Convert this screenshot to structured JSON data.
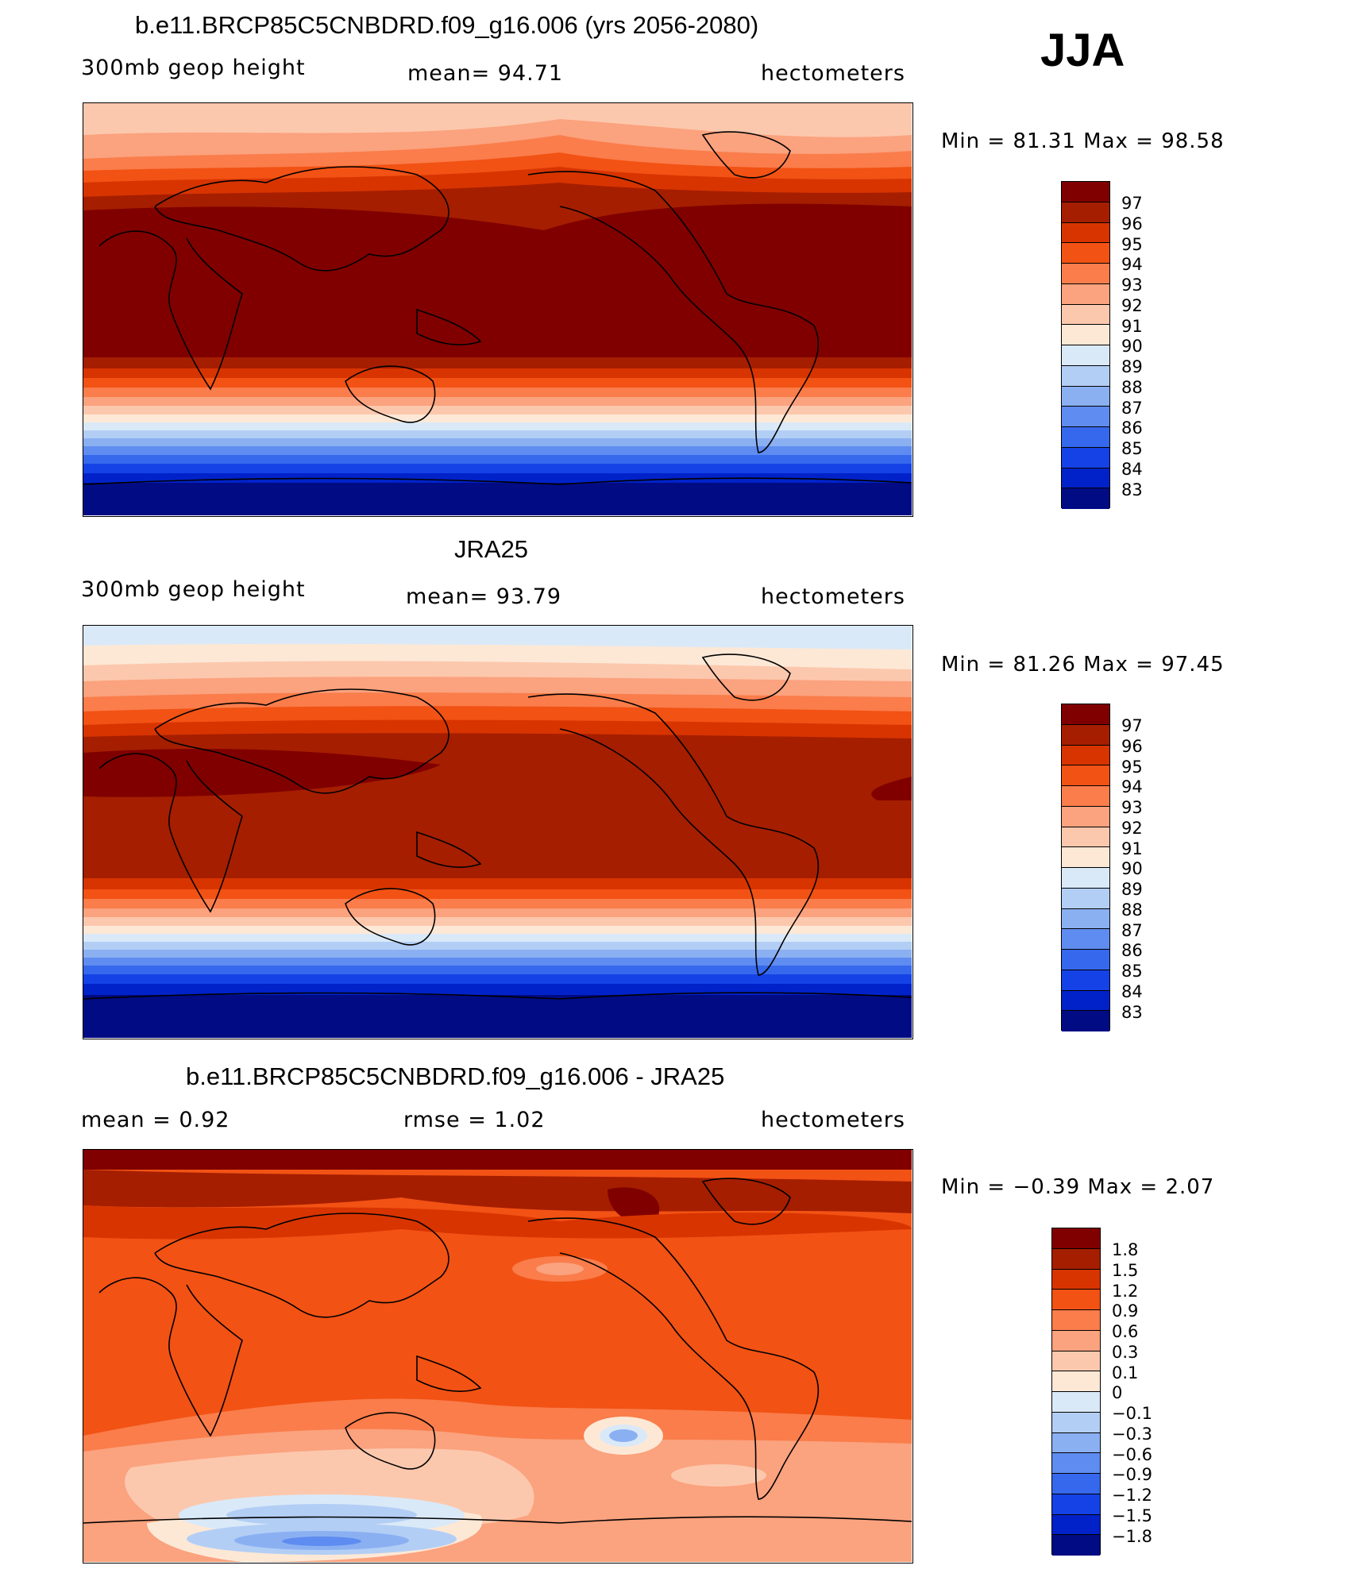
{
  "season": "JJA",
  "panels": [
    {
      "title": "b.e11.BRCP85C5CNBDRD.f09_g16.006 (yrs 2056-2080)",
      "left_label": "300mb geop height",
      "center_label": "mean=  94.71",
      "right_label": "hectometers",
      "minmax": "Min =  81.31 Max =  98.58",
      "levels": [
        "97",
        "96",
        "95",
        "94",
        "93",
        "92",
        "91",
        "90",
        "89",
        "88",
        "87",
        "86",
        "85",
        "84",
        "83"
      ],
      "colors": [
        "#800000",
        "#a51e00",
        "#d83400",
        "#f25214",
        "#fa7d4b",
        "#fba27e",
        "#fcc8ad",
        "#fde8d6",
        "#dae9f8",
        "#b3cef5",
        "#8bb0f2",
        "#5f8cf0",
        "#3568ec",
        "#1542e6",
        "#0022c8",
        "#000b84"
      ]
    },
    {
      "title": "JRA25",
      "left_label": "300mb geop height",
      "center_label": "mean=  93.79",
      "right_label": "hectometers",
      "minmax": "Min =  81.26 Max =  97.45",
      "levels": [
        "97",
        "96",
        "95",
        "94",
        "93",
        "92",
        "91",
        "90",
        "89",
        "88",
        "87",
        "86",
        "85",
        "84",
        "83"
      ],
      "colors": [
        "#800000",
        "#a51e00",
        "#d83400",
        "#f25214",
        "#fa7d4b",
        "#fba27e",
        "#fcc8ad",
        "#fde8d6",
        "#dae9f8",
        "#b3cef5",
        "#8bb0f2",
        "#5f8cf0",
        "#3568ec",
        "#1542e6",
        "#0022c8",
        "#000b84"
      ]
    },
    {
      "title": "b.e11.BRCP85C5CNBDRD.f09_g16.006 - JRA25",
      "left_label": "mean =    0.92",
      "center_label": "rmse =    1.02",
      "right_label": "hectometers",
      "minmax": "Min =  −0.39 Max =    2.07",
      "levels": [
        "1.8",
        "1.5",
        "1.2",
        "0.9",
        "0.6",
        "0.3",
        "0.1",
        "0",
        "−0.1",
        "−0.3",
        "−0.6",
        "−0.9",
        "−1.2",
        "−1.5",
        "−1.8"
      ],
      "colors": [
        "#800000",
        "#a51e00",
        "#d83400",
        "#f25214",
        "#fa7d4b",
        "#fba27e",
        "#fcc8ad",
        "#fde8d6",
        "#dae9f8",
        "#b3cef5",
        "#8bb0f2",
        "#5f8cf0",
        "#3568ec",
        "#1542e6",
        "#0022c8",
        "#000b84"
      ]
    }
  ]
}
